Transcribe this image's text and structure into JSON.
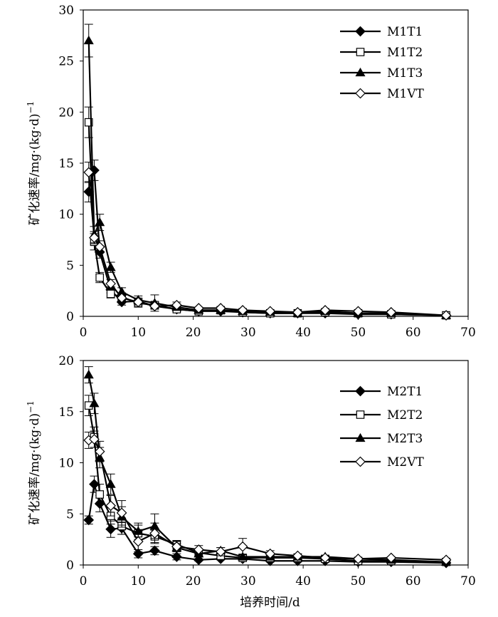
{
  "chart_data": [
    {
      "type": "line",
      "xlabel": "",
      "ylabel": "矿化速率/mg·(kg·d)",
      "ylabel_sup": "−1",
      "xlim": [
        0,
        70
      ],
      "ylim": [
        0,
        30
      ],
      "xticks": [
        0,
        10,
        20,
        30,
        40,
        50,
        60,
        70
      ],
      "yticks": [
        0,
        5,
        10,
        15,
        20,
        25,
        30
      ],
      "x": [
        1,
        2,
        3,
        5,
        7,
        10,
        13,
        17,
        21,
        25,
        29,
        34,
        39,
        44,
        50,
        56,
        66
      ],
      "legend_position": "top-right",
      "series": [
        {
          "name": "M1T1",
          "marker": "diamond-filled",
          "values": [
            12.2,
            14.3,
            6.3,
            2.6,
            1.4,
            1.5,
            1.0,
            0.7,
            0.5,
            0.5,
            0.4,
            0.3,
            0.3,
            0.3,
            0.2,
            0.2,
            0.1
          ],
          "errors": [
            1.0,
            1.0,
            0.6,
            0.3,
            0.3,
            0.3,
            0.3,
            0.2,
            0.1,
            0.1,
            0.1,
            0.1,
            0.1,
            0.1,
            0.1,
            0.1,
            0.05
          ]
        },
        {
          "name": "M1T2",
          "marker": "square-open",
          "values": [
            19.0,
            7.3,
            3.8,
            2.2,
            1.9,
            1.3,
            1.1,
            0.7,
            0.5,
            0.6,
            0.4,
            0.3,
            0.3,
            0.4,
            0.3,
            0.2,
            0.1
          ],
          "errors": [
            1.5,
            0.8,
            0.5,
            0.4,
            0.4,
            0.4,
            0.3,
            0.2,
            0.1,
            0.1,
            0.1,
            0.1,
            0.1,
            0.1,
            0.1,
            0.1,
            0.05
          ]
        },
        {
          "name": "M1T3",
          "marker": "triangle-filled",
          "values": [
            27.0,
            8.0,
            9.2,
            4.8,
            2.4,
            1.6,
            1.3,
            0.9,
            0.6,
            0.6,
            0.5,
            0.4,
            0.3,
            0.5,
            0.3,
            0.3,
            0.1
          ],
          "errors": [
            1.6,
            0.8,
            0.8,
            0.5,
            0.4,
            0.4,
            0.8,
            0.3,
            0.1,
            0.1,
            0.1,
            0.1,
            0.1,
            0.1,
            0.1,
            0.1,
            0.05
          ]
        },
        {
          "name": "M1VT",
          "marker": "diamond-open",
          "values": [
            14.1,
            7.7,
            6.8,
            3.2,
            1.8,
            1.4,
            1.0,
            1.1,
            0.8,
            0.8,
            0.6,
            0.5,
            0.4,
            0.6,
            0.5,
            0.4,
            0.1
          ],
          "errors": [
            1.0,
            0.6,
            0.6,
            0.4,
            0.3,
            0.3,
            0.3,
            0.3,
            0.1,
            0.1,
            0.1,
            0.1,
            0.1,
            0.1,
            0.1,
            0.1,
            0.05
          ]
        }
      ]
    },
    {
      "type": "line",
      "xlabel": "培养时间/d",
      "ylabel": "矿化速率/mg·(kg·d)",
      "ylabel_sup": "−1",
      "xlim": [
        0,
        70
      ],
      "ylim": [
        0,
        20
      ],
      "xticks": [
        0,
        10,
        20,
        30,
        40,
        50,
        60,
        70
      ],
      "yticks": [
        0,
        5,
        10,
        15,
        20
      ],
      "x": [
        1,
        2,
        3,
        5,
        7,
        10,
        13,
        17,
        21,
        25,
        29,
        34,
        39,
        44,
        50,
        56,
        66
      ],
      "legend_position": "top-right",
      "series": [
        {
          "name": "M2T1",
          "marker": "diamond-filled",
          "values": [
            4.4,
            7.9,
            6.0,
            3.5,
            3.6,
            1.1,
            1.4,
            0.8,
            0.5,
            0.6,
            0.6,
            0.4,
            0.4,
            0.4,
            0.3,
            0.3,
            0.2
          ],
          "errors": [
            0.4,
            0.8,
            0.8,
            0.8,
            0.6,
            0.4,
            0.4,
            0.3,
            0.1,
            0.1,
            0.1,
            0.1,
            0.1,
            0.1,
            0.1,
            0.1,
            0.05
          ]
        },
        {
          "name": "M2T2",
          "marker": "square-open",
          "values": [
            15.6,
            12.5,
            6.9,
            4.8,
            3.8,
            3.1,
            2.8,
            2.0,
            1.2,
            0.9,
            0.7,
            0.7,
            0.7,
            0.6,
            0.4,
            0.4,
            0.3
          ],
          "errors": [
            1.0,
            1.0,
            1.0,
            0.8,
            0.8,
            0.8,
            0.6,
            0.4,
            0.3,
            0.3,
            0.2,
            0.2,
            0.1,
            0.1,
            0.1,
            0.1,
            0.05
          ]
        },
        {
          "name": "M2T3",
          "marker": "triangle-filled",
          "values": [
            18.6,
            15.8,
            10.5,
            7.9,
            4.7,
            3.3,
            3.8,
            1.7,
            1.1,
            1.4,
            0.8,
            0.8,
            0.8,
            0.8,
            0.6,
            0.5,
            0.3
          ],
          "errors": [
            0.8,
            1.0,
            1.0,
            1.0,
            1.0,
            0.8,
            1.2,
            0.4,
            0.3,
            0.3,
            0.2,
            0.2,
            0.1,
            0.1,
            0.1,
            0.1,
            0.05
          ]
        },
        {
          "name": "M2VT",
          "marker": "diamond-open",
          "values": [
            12.2,
            12.3,
            11.1,
            5.8,
            5.1,
            2.3,
            3.1,
            1.8,
            1.5,
            1.3,
            1.8,
            1.1,
            0.9,
            0.7,
            0.6,
            0.7,
            0.5
          ],
          "errors": [
            0.8,
            0.8,
            1.0,
            1.0,
            1.2,
            1.0,
            1.0,
            0.5,
            0.4,
            0.4,
            0.8,
            0.3,
            0.2,
            0.2,
            0.1,
            0.1,
            0.1
          ]
        }
      ]
    }
  ]
}
